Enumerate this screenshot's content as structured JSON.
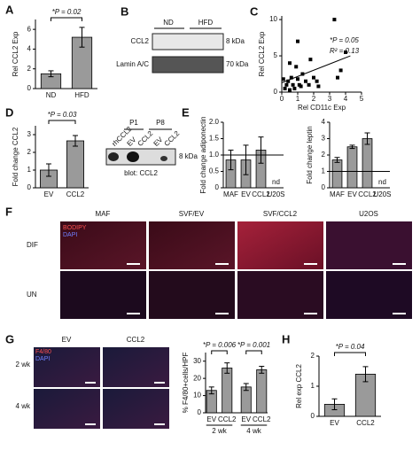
{
  "chart_data": [
    {
      "panel": "A",
      "type": "bar",
      "ylabel": "Rel CCL2 Exp",
      "categories": [
        "ND",
        "HFD"
      ],
      "values": [
        1.5,
        5.2
      ],
      "errors": [
        0.3,
        1.0
      ],
      "color": "#9a9a9a",
      "ylim": [
        0,
        7
      ],
      "yticks": [
        0,
        2,
        4,
        6
      ],
      "annotations": [
        "*P = 0.02"
      ]
    },
    {
      "panel": "C",
      "type": "scatter",
      "xlabel": "Rel CD11c Exp",
      "ylabel": "Rel CCL2 Exp",
      "x": [
        0.1,
        0.2,
        0.3,
        0.4,
        0.5,
        0.5,
        0.6,
        0.7,
        0.8,
        0.9,
        1.0,
        1.0,
        1.1,
        1.2,
        1.3,
        1.5,
        1.7,
        1.8,
        2.0,
        2.2,
        2.3,
        3.3,
        3.5,
        3.7,
        4.0
      ],
      "y": [
        1.8,
        0.5,
        1.0,
        1.5,
        0.3,
        4.0,
        2.0,
        1.0,
        0.5,
        3.5,
        1.8,
        7.0,
        1.0,
        0.8,
        2.5,
        1.5,
        1.0,
        4.5,
        2.0,
        1.5,
        0.8,
        10.0,
        2.0,
        3.0,
        5.5
      ],
      "trendline": {
        "x": [
          0,
          4.3
        ],
        "y": [
          1.3,
          5.0
        ]
      },
      "color": "#000000",
      "xlim": [
        0,
        5
      ],
      "xticks": [
        0,
        1,
        2,
        3,
        4,
        5
      ],
      "ylim": [
        0,
        10.5
      ],
      "yticks": [
        0,
        5,
        10
      ],
      "annotations": [
        "*P = 0.05",
        "R² = 0.13"
      ]
    },
    {
      "panel": "D",
      "type": "bar",
      "ylabel": "Fold change CCL2",
      "categories": [
        "EV",
        "CCL2"
      ],
      "values": [
        1.0,
        2.65
      ],
      "errors": [
        0.35,
        0.3
      ],
      "color": "#9a9a9a",
      "ylim": [
        0,
        3.5
      ],
      "yticks": [
        0,
        1,
        2,
        3
      ],
      "annotations": [
        "*P = 0.03"
      ]
    },
    {
      "panel": "E",
      "type": "bar",
      "ylabel": "Fold change adiponectin",
      "categories": [
        "MAF",
        "EV",
        "CCL2",
        "U20S"
      ],
      "values": [
        0.85,
        0.85,
        1.15,
        null
      ],
      "value_labels": [
        null,
        null,
        null,
        "nd"
      ],
      "errors": [
        0.3,
        0.45,
        0.4,
        null
      ],
      "hline": 1,
      "color": "#9a9a9a",
      "ylim": [
        0,
        2
      ],
      "yticks": [
        0,
        0.5,
        {
          "value": 1,
          "label": "1.0"
        },
        1.5,
        {
          "value": 2,
          "label": "2.0"
        }
      ]
    },
    {
      "type": "bar",
      "ylabel": "Fold change leptin",
      "categories": [
        "MAF",
        "EV",
        "CCL2",
        "U20S"
      ],
      "values": [
        1.7,
        2.5,
        3.0,
        null
      ],
      "value_labels": [
        null,
        null,
        null,
        "nd"
      ],
      "errors": [
        0.15,
        0.1,
        0.35,
        null
      ],
      "hline": 1,
      "color": "#9a9a9a",
      "ylim": [
        0,
        4
      ],
      "yticks": [
        0,
        1,
        2,
        3,
        4
      ]
    },
    {
      "type": "bar",
      "ylabel": "% F4/80+cells/HPF",
      "categories": [
        "EV",
        "CCL2",
        "EV",
        "CCL2"
      ],
      "groups": [
        "2 wk",
        "4 wk"
      ],
      "values": [
        13,
        26,
        15,
        25
      ],
      "errors": [
        2,
        3,
        2,
        2
      ],
      "color": "#9a9a9a",
      "ylim": [
        0,
        35
      ],
      "yticks": [
        0,
        10,
        20,
        30
      ],
      "annotations": [
        "*P = 0.006",
        "*P = 0.001"
      ]
    },
    {
      "panel": "H",
      "type": "bar",
      "ylabel": "Rel exp CCL2",
      "categories": [
        "EV",
        "CCL2"
      ],
      "values": [
        0.4,
        1.4
      ],
      "errors": [
        0.18,
        0.25
      ],
      "color": "#9a9a9a",
      "ylim": [
        0,
        2
      ],
      "yticks": [
        0,
        1,
        2
      ],
      "annotations": [
        "*P = 0.04"
      ]
    }
  ],
  "blot_B": {
    "panel": "B",
    "lanes": [
      "ND",
      "HFD"
    ],
    "bands": [
      {
        "label": "CCL2",
        "size": "8 kDa"
      },
      {
        "label": "Lamin A/C",
        "size": "70 kDa"
      }
    ]
  },
  "blot_D": {
    "lanes": [
      "rhCCL2",
      "EV",
      "CCL2",
      "EV",
      "CCL2"
    ],
    "passages": [
      "P1",
      "P8"
    ],
    "size": "8 kDa",
    "caption": "blot: CCL2"
  },
  "micrographs_F": {
    "panel": "F",
    "stains": [
      "BODIPY",
      "DAPI"
    ],
    "columns": [
      "MAF",
      "SVF/EV",
      "SVF/CCL2",
      "U2OS"
    ],
    "rows": [
      "DIF",
      "UN"
    ]
  },
  "micrographs_G": {
    "panel": "G",
    "stains": [
      "F4/80",
      "DAPI"
    ],
    "columns": [
      "EV",
      "CCL2"
    ],
    "rows": [
      "2 wk",
      "4 wk"
    ]
  }
}
